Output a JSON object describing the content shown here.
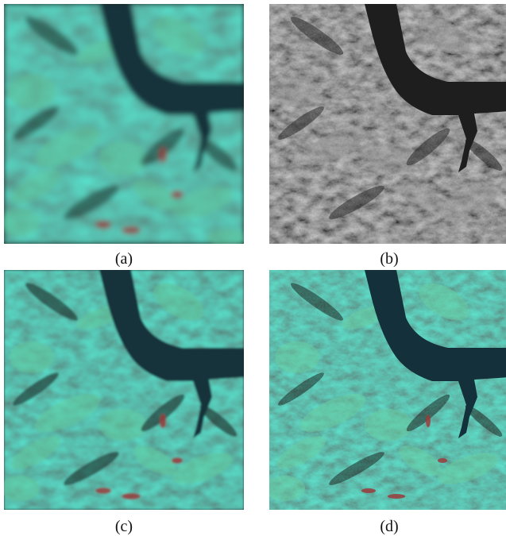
{
  "figure": {
    "panels": [
      {
        "id": "a",
        "caption": "(a)",
        "style": "color",
        "sharpness": "blurred"
      },
      {
        "id": "b",
        "caption": "(b)",
        "style": "grayscale",
        "sharpness": "sharp"
      },
      {
        "id": "c",
        "caption": "(c)",
        "style": "color",
        "sharpness": "medium"
      },
      {
        "id": "d",
        "caption": "(d)",
        "style": "color",
        "sharpness": "sharp"
      }
    ]
  },
  "colors": {
    "water": "#14303a",
    "vegetation_light": "#6fd6a8",
    "vegetation_dark": "#1f2e2a",
    "red_patches": "#9a3c3c",
    "gray_light": "#a8a8a8",
    "gray_dark": "#1e1e1e"
  }
}
